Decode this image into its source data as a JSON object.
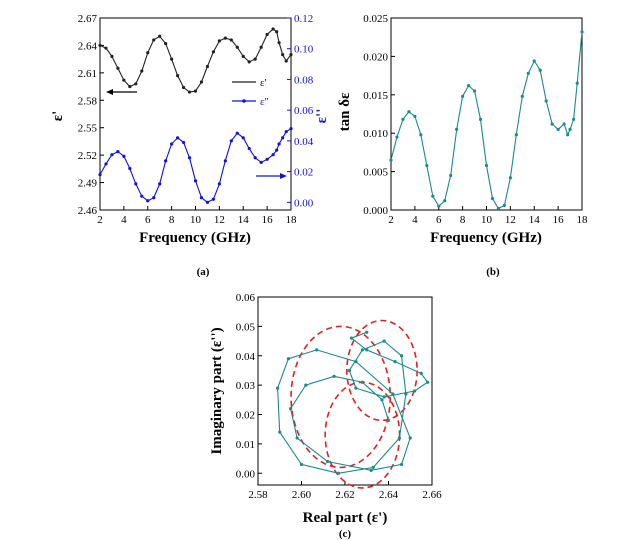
{
  "chart_data": [
    {
      "panel": "(a)",
      "type": "line",
      "xlabel": "Frequency (GHz)",
      "ylabel_left": "ε'",
      "ylabel_right": "ε''",
      "xlim": [
        2,
        18
      ],
      "ylim_left": [
        2.46,
        2.67
      ],
      "ylim_right": [
        -0.005,
        0.12
      ],
      "x_ticks": [
        "2",
        "4",
        "6",
        "8",
        "10",
        "12",
        "14",
        "16",
        "18"
      ],
      "y_left_ticks": [
        "2.46",
        "2.49",
        "2.52",
        "2.55",
        "2.58",
        "2.61",
        "2.64",
        "2.67"
      ],
      "y_right_ticks": [
        "0.00",
        "0.02",
        "0.04",
        "0.06",
        "0.08",
        "0.10",
        "0.12"
      ],
      "colors": {
        "eps_real": "#222222",
        "eps_imag": "#1010e0"
      },
      "series": [
        {
          "name": "ε'",
          "axis": "left",
          "x": [
            2,
            2.5,
            3,
            3.5,
            4,
            4.5,
            5,
            5.5,
            6,
            6.5,
            7,
            7.5,
            8,
            8.5,
            9,
            9.5,
            10,
            10.5,
            11,
            11.5,
            12,
            12.5,
            13,
            13.5,
            14,
            14.5,
            15,
            15.5,
            16,
            16.5,
            16.8,
            17,
            17.3,
            17.6,
            18
          ],
          "values": [
            2.64,
            2.637,
            2.628,
            2.615,
            2.602,
            2.595,
            2.598,
            2.612,
            2.632,
            2.646,
            2.65,
            2.642,
            2.625,
            2.607,
            2.594,
            2.589,
            2.59,
            2.6,
            2.617,
            2.633,
            2.645,
            2.648,
            2.646,
            2.638,
            2.628,
            2.622,
            2.625,
            2.638,
            2.652,
            2.658,
            2.655,
            2.643,
            2.63,
            2.623,
            2.63
          ]
        },
        {
          "name": "ε''",
          "axis": "right",
          "x": [
            2,
            2.5,
            3,
            3.5,
            4,
            4.5,
            5,
            5.5,
            6,
            6.5,
            7,
            7.5,
            8,
            8.5,
            9,
            9.5,
            10,
            10.5,
            11,
            11.5,
            12,
            12.5,
            13,
            13.5,
            14,
            14.5,
            15,
            15.5,
            16,
            16.5,
            16.8,
            17,
            17.3,
            17.6,
            18
          ],
          "values": [
            0.018,
            0.025,
            0.031,
            0.033,
            0.03,
            0.022,
            0.012,
            0.004,
            0.001,
            0.003,
            0.012,
            0.027,
            0.038,
            0.042,
            0.039,
            0.029,
            0.014,
            0.003,
            0.0,
            0.002,
            0.012,
            0.027,
            0.04,
            0.045,
            0.042,
            0.035,
            0.029,
            0.026,
            0.028,
            0.031,
            0.034,
            0.038,
            0.042,
            0.046,
            0.048
          ]
        }
      ]
    },
    {
      "panel": "(b)",
      "type": "line",
      "xlabel": "Frequency (GHz)",
      "ylabel": "tan δε",
      "xlim": [
        2,
        18
      ],
      "ylim": [
        0,
        0.025
      ],
      "x_ticks": [
        "2",
        "4",
        "6",
        "8",
        "10",
        "12",
        "14",
        "16",
        "18"
      ],
      "y_ticks": [
        "0.000",
        "0.005",
        "0.010",
        "0.015",
        "0.020",
        "0.025"
      ],
      "color": "#1a8a8a",
      "series": [
        {
          "x": [
            2,
            2.5,
            3,
            3.5,
            4,
            4.5,
            5,
            5.5,
            6,
            6.5,
            7,
            7.5,
            8,
            8.5,
            9,
            9.5,
            10,
            10.5,
            11,
            11.5,
            12,
            12.5,
            13,
            13.5,
            14,
            14.5,
            15,
            15.5,
            16,
            16.5,
            16.8,
            17,
            17.3,
            17.6,
            18
          ],
          "values": [
            0.0065,
            0.0095,
            0.0118,
            0.0128,
            0.0122,
            0.0098,
            0.0058,
            0.0018,
            0.0005,
            0.0012,
            0.0045,
            0.0105,
            0.0148,
            0.0162,
            0.0155,
            0.0118,
            0.0058,
            0.0015,
            0.0002,
            0.0006,
            0.0042,
            0.0098,
            0.0148,
            0.0178,
            0.0194,
            0.0182,
            0.0142,
            0.0112,
            0.0105,
            0.0112,
            0.0098,
            0.0105,
            0.0118,
            0.0165,
            0.0232
          ]
        }
      ]
    },
    {
      "panel": "(c)",
      "type": "scatter",
      "xlabel": "Real part (ε')",
      "ylabel": "Imaginary part (ε'')",
      "xlim": [
        2.58,
        2.66
      ],
      "ylim": [
        -0.004,
        0.06
      ],
      "x_ticks": [
        "2.58",
        "2.60",
        "2.62",
        "2.64",
        "2.66"
      ],
      "y_ticks": [
        "0.00",
        "0.01",
        "0.02",
        "0.03",
        "0.04",
        "0.05",
        "0.06"
      ],
      "colors": {
        "points": "#1a8a8a",
        "circles": "#e02020"
      },
      "series": [
        {
          "x": [
            2.64,
            2.637,
            2.628,
            2.615,
            2.602,
            2.595,
            2.598,
            2.612,
            2.632,
            2.646,
            2.65,
            2.642,
            2.625,
            2.607,
            2.594,
            2.589,
            2.59,
            2.6,
            2.617,
            2.633,
            2.645,
            2.648,
            2.646,
            2.638,
            2.628,
            2.622,
            2.625,
            2.638,
            2.652,
            2.658,
            2.655,
            2.643,
            2.63,
            2.623,
            2.63
          ],
          "values": [
            0.018,
            0.025,
            0.031,
            0.033,
            0.03,
            0.022,
            0.012,
            0.004,
            0.001,
            0.003,
            0.012,
            0.027,
            0.038,
            0.042,
            0.039,
            0.029,
            0.014,
            0.003,
            0.0,
            0.002,
            0.012,
            0.027,
            0.04,
            0.045,
            0.042,
            0.035,
            0.029,
            0.026,
            0.028,
            0.031,
            0.034,
            0.038,
            0.042,
            0.046,
            0.048
          ]
        }
      ],
      "circles": [
        {
          "cx": 2.618,
          "cy": 0.026,
          "r": 0.024
        },
        {
          "cx": 2.628,
          "cy": 0.013,
          "r": 0.018
        },
        {
          "cx": 2.637,
          "cy": 0.035,
          "r": 0.017
        }
      ]
    }
  ]
}
